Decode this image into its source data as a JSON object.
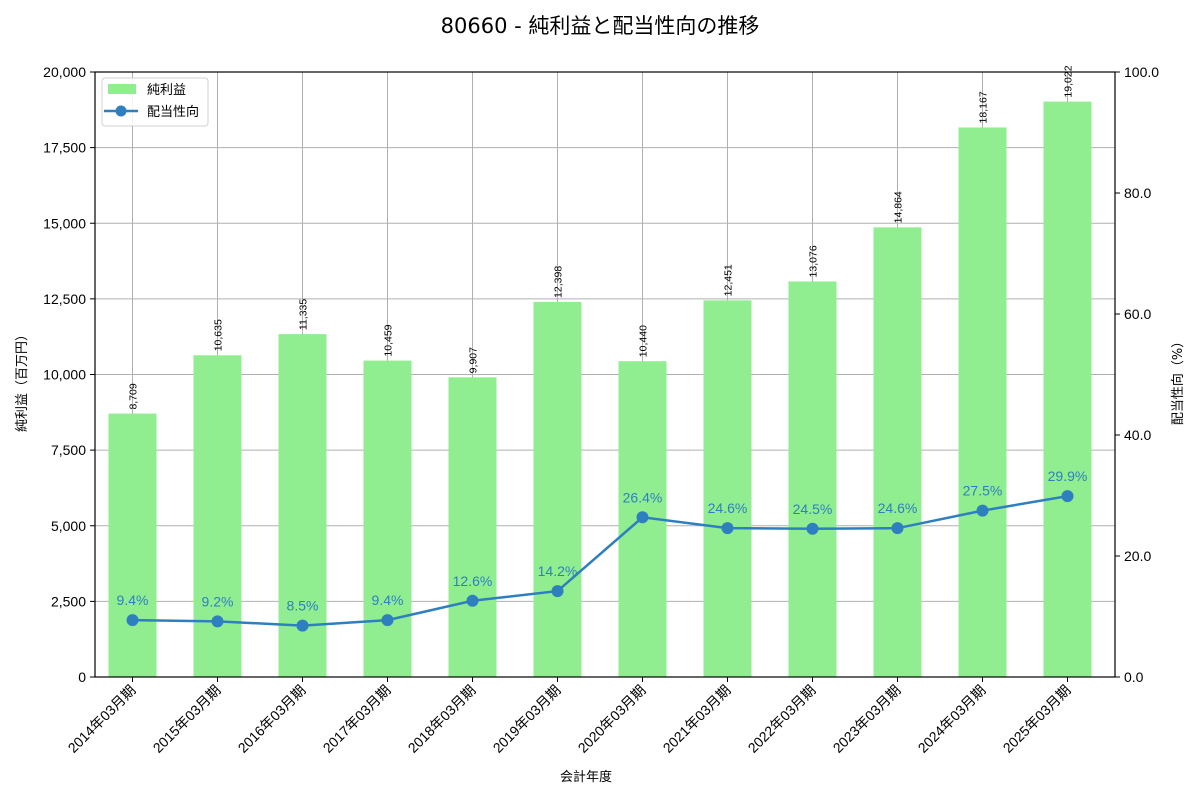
{
  "chart_data": {
    "type": "bar",
    "title": "80660 - 純利益と配当性向の推移",
    "xlabel": "会計年度",
    "ylabel": "純利益（百万円）",
    "y2label": "配当性向（%）",
    "ylim": [
      0,
      20000
    ],
    "y2lim": [
      0,
      100
    ],
    "yticks": [
      "0",
      "2,500",
      "5,000",
      "7,500",
      "10,000",
      "12,500",
      "15,000",
      "17,500",
      "20,000"
    ],
    "y2ticks": [
      "0.0",
      "20.0",
      "40.0",
      "60.0",
      "80.0",
      "100.0"
    ],
    "grid": true,
    "legend_position": "upper left",
    "categories": [
      "2014年03月期",
      "2015年03月期",
      "2016年03月期",
      "2017年03月期",
      "2018年03月期",
      "2019年03月期",
      "2020年03月期",
      "2021年03月期",
      "2022年03月期",
      "2023年03月期",
      "2024年03月期",
      "2025年03月期"
    ],
    "series": [
      {
        "name": "純利益",
        "type": "bar",
        "axis": "left",
        "color": "#90ee90",
        "values": [
          8709,
          10635,
          11335,
          10459,
          9907,
          12398,
          10440,
          12451,
          13076,
          14864,
          18167,
          19022
        ],
        "labels": [
          "8,709",
          "10,635",
          "11,335",
          "10,459",
          "9,907",
          "12,398",
          "10,440",
          "12,451",
          "13,076",
          "14,864",
          "18,167",
          "19,022"
        ]
      },
      {
        "name": "配当性向",
        "type": "line",
        "axis": "right",
        "color": "#2e7fc0",
        "values": [
          9.4,
          9.2,
          8.5,
          9.4,
          12.6,
          14.2,
          26.4,
          24.6,
          24.5,
          24.6,
          27.5,
          29.9
        ],
        "labels": [
          "9.4%",
          "9.2%",
          "8.5%",
          "9.4%",
          "12.6%",
          "14.2%",
          "26.4%",
          "24.6%",
          "24.5%",
          "24.6%",
          "27.5%",
          "29.9%"
        ]
      }
    ]
  }
}
